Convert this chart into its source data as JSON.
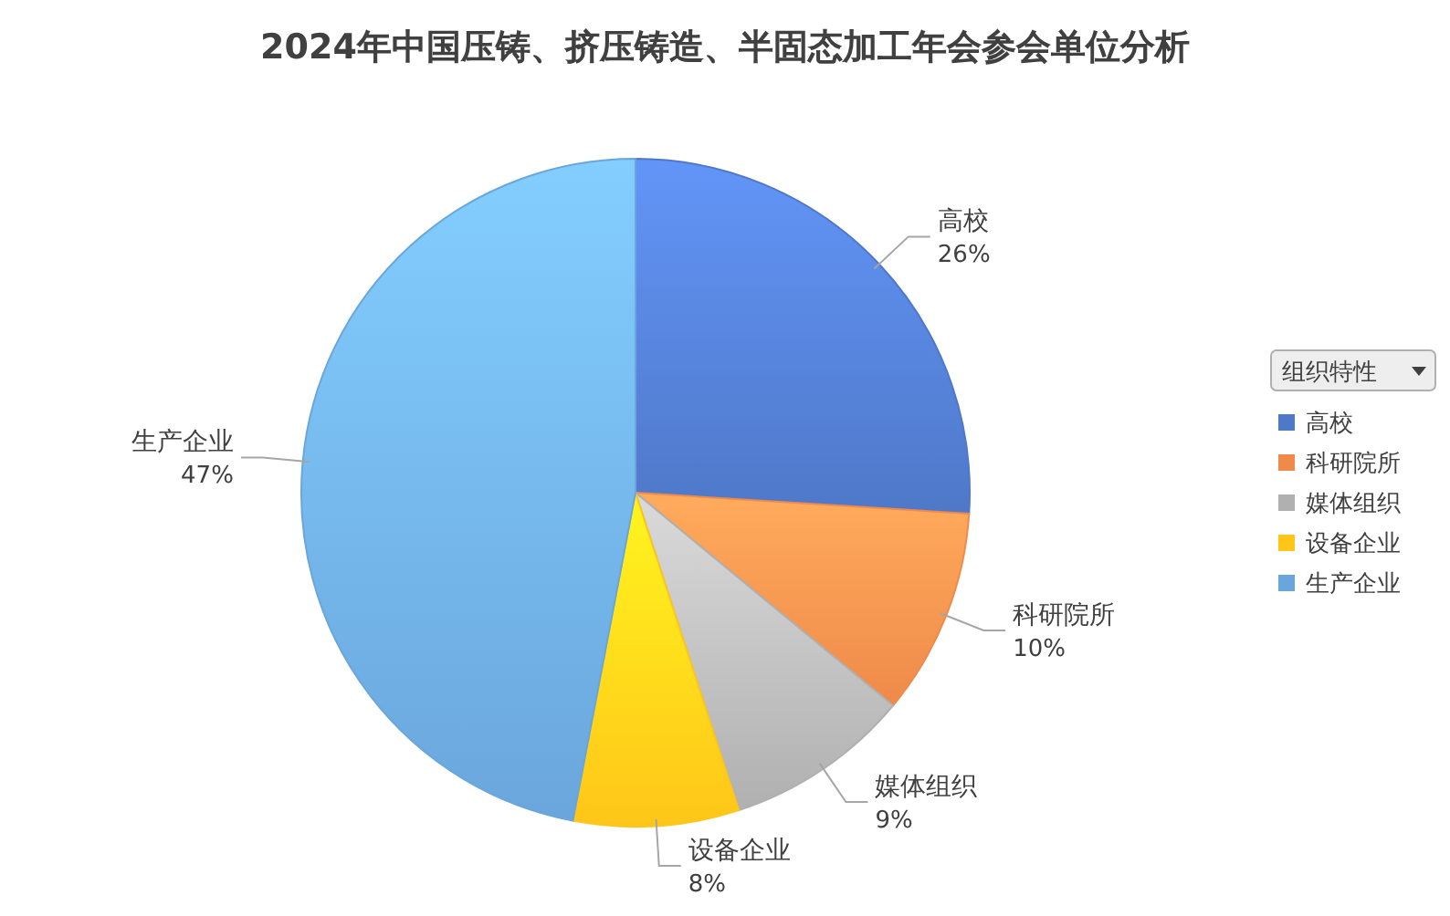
{
  "chart_data": {
    "type": "pie",
    "title": "2024年中国压铸、挤压铸造、半固态加工年会参会单位分析",
    "legend_title": "组织特性",
    "legend": "right",
    "value_labels": [
      "26%",
      "10%",
      "9%",
      "8%",
      "47%"
    ],
    "categories": [
      "高校",
      "科研院所",
      "媒体组织",
      "设备企业",
      "生产企业"
    ],
    "values": [
      26,
      10,
      9,
      8,
      47
    ],
    "colors": [
      "#4f78c8",
      "#ef8a4a",
      "#b0b0b0",
      "#ffc619",
      "#6aa6dc"
    ]
  }
}
